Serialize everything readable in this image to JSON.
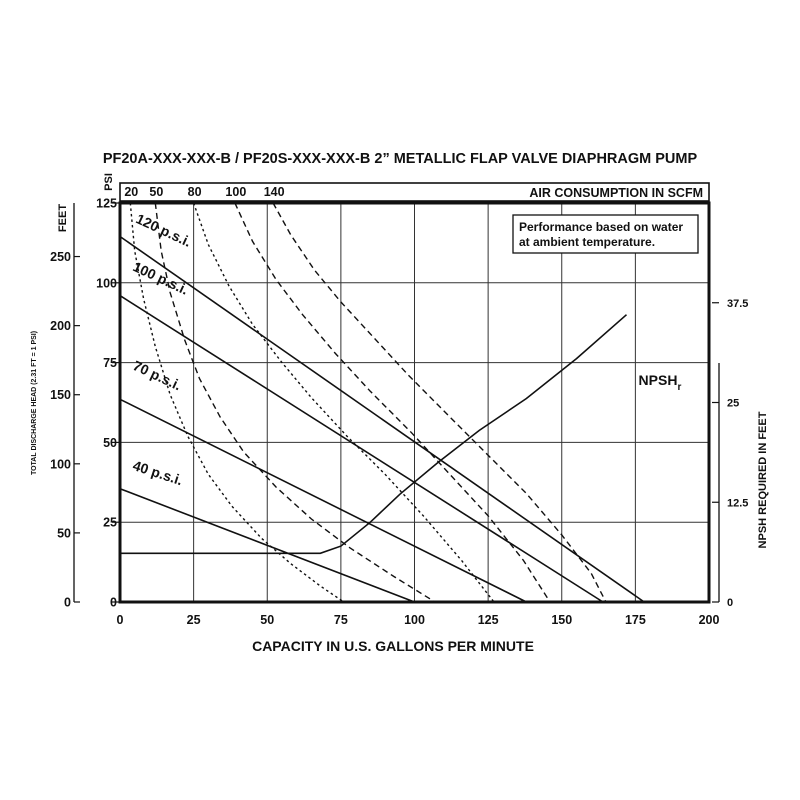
{
  "chart_data": {
    "type": "line",
    "title": "PF20A-XXX-XXX-B / PF20S-XXX-XXX-B   2” METALLIC FLAP VALVE DIAPHRAGM PUMP",
    "xlabel": "CAPACITY IN U.S. GALLONS PER MINUTE",
    "xlim": [
      0,
      200
    ],
    "x_ticks": [
      "0",
      "25",
      "50",
      "75",
      "100",
      "125",
      "150",
      "175",
      "200"
    ],
    "ylabel_psi": "PSI",
    "ylim_psi": [
      0,
      125
    ],
    "psi_ticks": [
      "0",
      "25",
      "50",
      "75",
      "100",
      "125"
    ],
    "ylabel_feet": "FEET",
    "feet_ticks": [
      "0",
      "50",
      "100",
      "150",
      "200",
      "250"
    ],
    "ylabel_head": "TOTAL DISCHARGE HEAD (2.31 FT = 1 PSI)",
    "ylabel_right": "NPSH REQUIRED IN FEET",
    "right_ticks": [
      "0",
      "12.5",
      "25",
      "37.5"
    ],
    "right_range": [
      0,
      50
    ],
    "air_axis_label": "AIR CONSUMPTION IN SCFM",
    "air_labels": [
      "20",
      "50",
      "80",
      "100",
      "140"
    ],
    "note_lines": [
      "Performance based on water",
      "at ambient temperature."
    ],
    "grid": true,
    "series": [
      {
        "name": "120 p.s.i.",
        "label_x": 3,
        "label_y": 119,
        "label_rot": 25,
        "x": [
          0,
          178
        ],
        "y": [
          114.5,
          0
        ]
      },
      {
        "name": "100 p.s.i.",
        "label_x": 2,
        "label_y": 104,
        "label_rot": 25,
        "x": [
          0,
          164
        ],
        "y": [
          96,
          0
        ]
      },
      {
        "name": "70 p.s.i.",
        "label_x": 2,
        "label_y": 73,
        "label_rot": 25,
        "x": [
          0,
          138
        ],
        "y": [
          63.5,
          0
        ]
      },
      {
        "name": "40 p.s.i.",
        "label_x": 2,
        "label_y": 41.5,
        "label_rot": 18,
        "x": [
          0,
          100
        ],
        "y": [
          35.5,
          0
        ]
      }
    ],
    "air_curves": [
      {
        "label": "20",
        "style": "dotted",
        "x": [
          3.5,
          5,
          8,
          12,
          17,
          23,
          30,
          38,
          48,
          58,
          68,
          76
        ],
        "y": [
          125,
          110,
          95,
          80,
          65,
          52,
          40,
          30,
          20,
          12,
          5,
          0
        ]
      },
      {
        "label": "50",
        "style": "dashed",
        "x": [
          12,
          14,
          17,
          22,
          27,
          34,
          42,
          53,
          65,
          78,
          93,
          107
        ],
        "y": [
          125,
          110,
          97,
          82,
          70,
          58,
          47,
          36,
          26,
          17,
          8,
          0
        ]
      },
      {
        "label": "80",
        "style": "dotted",
        "x": [
          25,
          30,
          37,
          45,
          55,
          65,
          77,
          90,
          103,
          116,
          127
        ],
        "y": [
          125,
          112,
          99,
          87,
          75,
          64,
          52,
          40,
          27,
          13,
          0
        ]
      },
      {
        "label": "100",
        "style": "dashed",
        "x": [
          39,
          45,
          53,
          62,
          73,
          85,
          99,
          112,
          125,
          137,
          146
        ],
        "y": [
          125,
          113,
          101,
          90,
          78,
          66,
          53,
          40,
          27,
          13,
          0
        ]
      },
      {
        "label": "140",
        "style": "dashed",
        "x": [
          52,
          58,
          66,
          75,
          86,
          98,
          112,
          125,
          138,
          150,
          160,
          165
        ],
        "y": [
          125,
          115,
          104,
          94,
          83,
          71,
          58,
          46,
          34,
          21,
          9,
          0
        ]
      }
    ],
    "npsh": {
      "label": "NPSH",
      "label_sub": "r",
      "x_gpm": [
        0,
        68,
        75,
        85,
        95,
        108,
        122,
        138,
        155,
        172
      ],
      "y_feet": [
        6.1,
        6.1,
        7,
        10,
        13.5,
        17.5,
        21.5,
        25.5,
        30.5,
        36
      ]
    }
  }
}
